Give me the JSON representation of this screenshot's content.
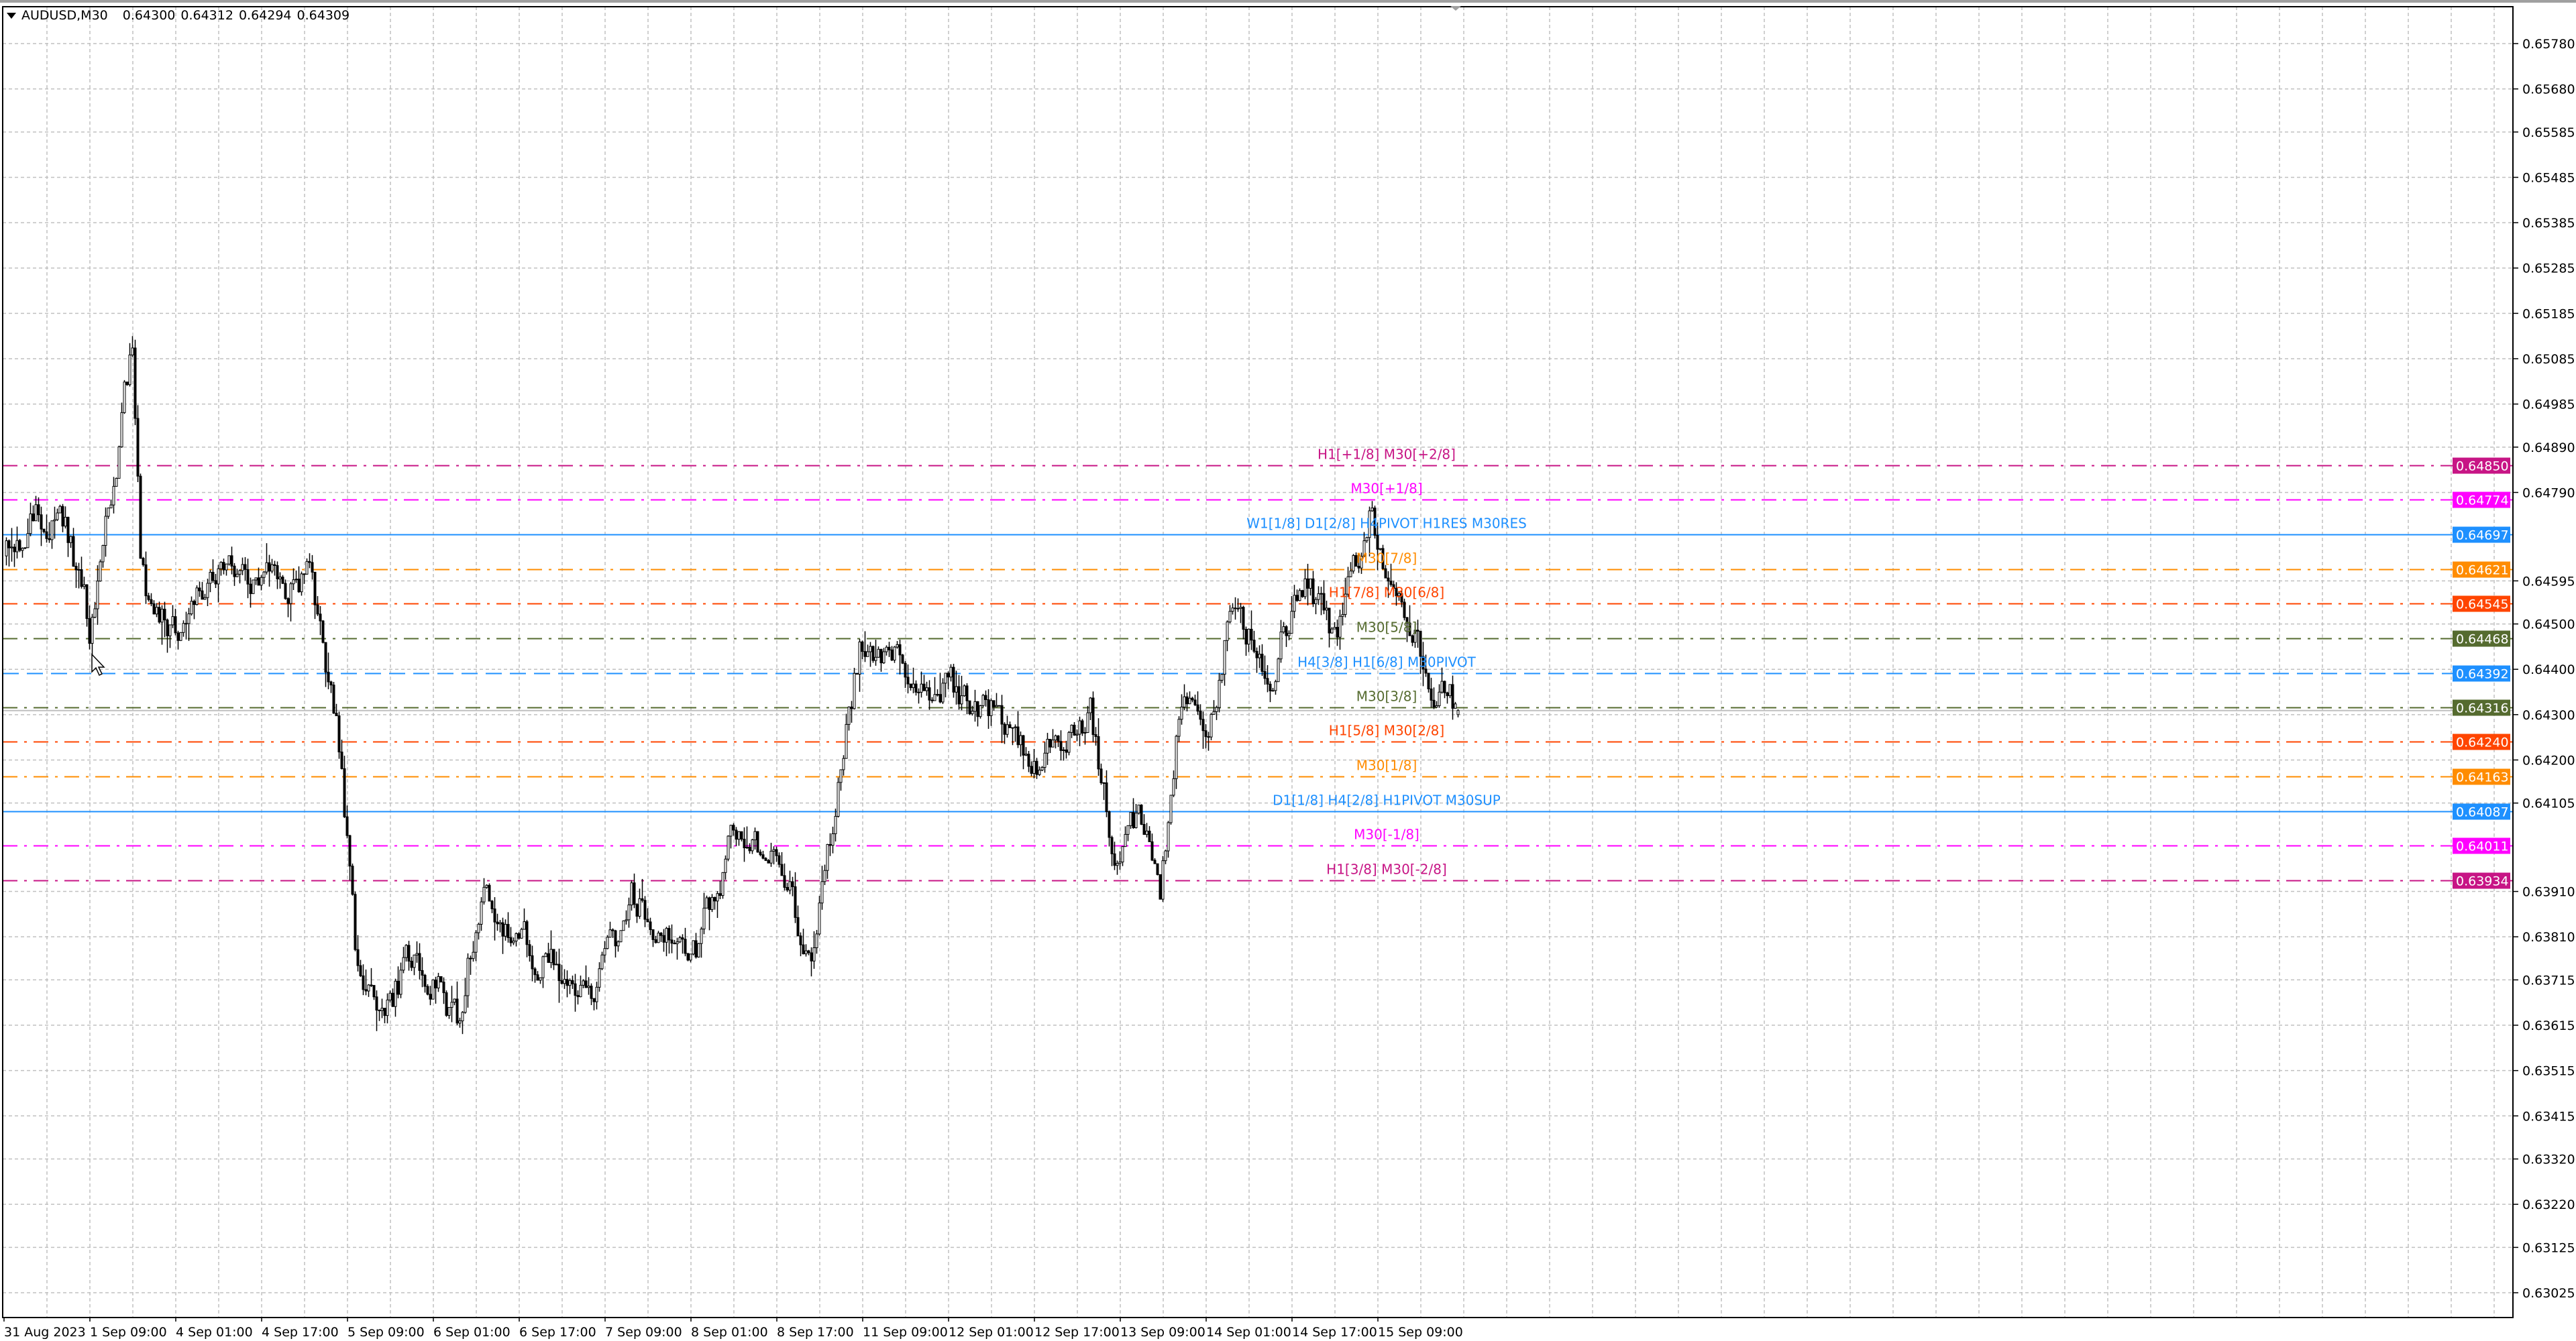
{
  "header": {
    "symbol": "AUDUSD,M30",
    "open": "0.64300",
    "high": "0.64312",
    "low": "0.64294",
    "close": "0.64309"
  },
  "colors": {
    "background": "#FFFFFF",
    "grid": "#C0C0C0",
    "candle_bull": "#FFFFFF",
    "candle_bear": "#000000",
    "bid_line": "#C0C0C0"
  },
  "price_axis": {
    "ticks": [
      "0.65780",
      "0.65680",
      "0.65585",
      "0.65485",
      "0.65385",
      "0.65285",
      "0.65185",
      "0.65085",
      "0.64985",
      "0.64890",
      "0.64790",
      "0.64595",
      "0.64500",
      "0.64400",
      "0.64300",
      "0.64200",
      "0.64105",
      "0.63910",
      "0.63810",
      "0.63715",
      "0.63615",
      "0.63515",
      "0.63415",
      "0.63320",
      "0.63220",
      "0.63125",
      "0.63025"
    ]
  },
  "time_axis": {
    "labels": [
      "31 Aug 2023",
      "1 Sep 09:00",
      "4 Sep 01:00",
      "4 Sep 17:00",
      "5 Sep 09:00",
      "6 Sep 01:00",
      "6 Sep 17:00",
      "7 Sep 09:00",
      "8 Sep 01:00",
      "8 Sep 17:00",
      "11 Sep 09:00",
      "12 Sep 01:00",
      "12 Sep 17:00",
      "13 Sep 09:00",
      "14 Sep 01:00",
      "14 Sep 17:00",
      "15 Sep 09:00"
    ]
  },
  "levels": [
    {
      "price": "0.64850",
      "color": "#C71585",
      "style": "dashdot",
      "label": "H1[+1/8] M30[+2/8]"
    },
    {
      "price": "0.64774",
      "color": "#FF00FF",
      "style": "dashdot",
      "label": "M30[+1/8]"
    },
    {
      "price": "0.64697",
      "color": "#1E90FF",
      "style": "solid",
      "label": "W1[1/8] D1[2/8] H4PIVOT H1RES M30RES"
    },
    {
      "price": "0.64621",
      "color": "#FF8C00",
      "style": "dashdot",
      "label": "M30[7/8]"
    },
    {
      "price": "0.64545",
      "color": "#FF4500",
      "style": "dashdot",
      "label": "H1[7/8] M30[6/8]"
    },
    {
      "price": "0.64468",
      "color": "#556B2F",
      "style": "dashdot",
      "label": "M30[5/8]"
    },
    {
      "price": "0.64392",
      "color": "#1E90FF",
      "style": "dashed",
      "label": "H4[3/8] H1[6/8] M30PIVOT"
    },
    {
      "price": "0.64316",
      "color": "#556B2F",
      "style": "dashdot",
      "label": "M30[3/8]"
    },
    {
      "price": "0.64240",
      "color": "#FF4500",
      "style": "dashdot",
      "label": "H1[5/8] M30[2/8]"
    },
    {
      "price": "0.64163",
      "color": "#FF8C00",
      "style": "dashdot",
      "label": "M30[1/8]"
    },
    {
      "price": "0.64087",
      "color": "#1E90FF",
      "style": "solid",
      "label": "D1[1/8] H4[2/8] H1PIVOT M30SUP"
    },
    {
      "price": "0.64011",
      "color": "#FF00FF",
      "style": "dashdot",
      "label": "M30[-1/8]"
    },
    {
      "price": "0.63934",
      "color": "#C71585",
      "style": "dashdot",
      "label": "H1[3/8] M30[-2/8]"
    }
  ],
  "chart_data": {
    "type": "candlestick",
    "symbol": "AUDUSD",
    "timeframe": "M30",
    "ylim": [
      0.63,
      0.6587
    ],
    "grid": true,
    "last_bar": {
      "open": 0.643,
      "high": 0.64312,
      "low": 0.64294,
      "close": 0.64309
    },
    "approx_close_path": [
      {
        "bar": 0,
        "close": 0.6465
      },
      {
        "bar": 12,
        "close": 0.6475
      },
      {
        "bar": 24,
        "close": 0.6468
      },
      {
        "bar": 31,
        "close": 0.645
      },
      {
        "bar": 37,
        "close": 0.647
      },
      {
        "bar": 47,
        "close": 0.6512
      },
      {
        "bar": 50,
        "close": 0.6465
      },
      {
        "bar": 55,
        "close": 0.6448
      },
      {
        "bar": 67,
        "close": 0.6452
      },
      {
        "bar": 80,
        "close": 0.6465
      },
      {
        "bar": 92,
        "close": 0.6457
      },
      {
        "bar": 113,
        "close": 0.646
      },
      {
        "bar": 119,
        "close": 0.644
      },
      {
        "bar": 125,
        "close": 0.642
      },
      {
        "bar": 130,
        "close": 0.6378
      },
      {
        "bar": 141,
        "close": 0.6365
      },
      {
        "bar": 153,
        "close": 0.6378
      },
      {
        "bar": 168,
        "close": 0.6362
      },
      {
        "bar": 177,
        "close": 0.6392
      },
      {
        "bar": 184,
        "close": 0.6385
      },
      {
        "bar": 196,
        "close": 0.6378
      },
      {
        "bar": 220,
        "close": 0.6368
      },
      {
        "bar": 233,
        "close": 0.639
      },
      {
        "bar": 257,
        "close": 0.6378
      },
      {
        "bar": 272,
        "close": 0.6405
      },
      {
        "bar": 288,
        "close": 0.6398
      },
      {
        "bar": 300,
        "close": 0.6375
      },
      {
        "bar": 309,
        "close": 0.641
      },
      {
        "bar": 318,
        "close": 0.6445
      },
      {
        "bar": 337,
        "close": 0.644
      },
      {
        "bar": 355,
        "close": 0.6435
      },
      {
        "bar": 373,
        "close": 0.6428
      },
      {
        "bar": 383,
        "close": 0.6418
      },
      {
        "bar": 404,
        "close": 0.643
      },
      {
        "bar": 413,
        "close": 0.64
      },
      {
        "bar": 422,
        "close": 0.6405
      },
      {
        "bar": 430,
        "close": 0.6392
      },
      {
        "bar": 438,
        "close": 0.6435
      },
      {
        "bar": 447,
        "close": 0.642
      },
      {
        "bar": 456,
        "close": 0.6455
      },
      {
        "bar": 471,
        "close": 0.644
      },
      {
        "bar": 483,
        "close": 0.646
      },
      {
        "bar": 496,
        "close": 0.6445
      },
      {
        "bar": 508,
        "close": 0.6475
      },
      {
        "bar": 517,
        "close": 0.646
      },
      {
        "bar": 529,
        "close": 0.644
      },
      {
        "bar": 541,
        "close": 0.64309
      }
    ]
  }
}
